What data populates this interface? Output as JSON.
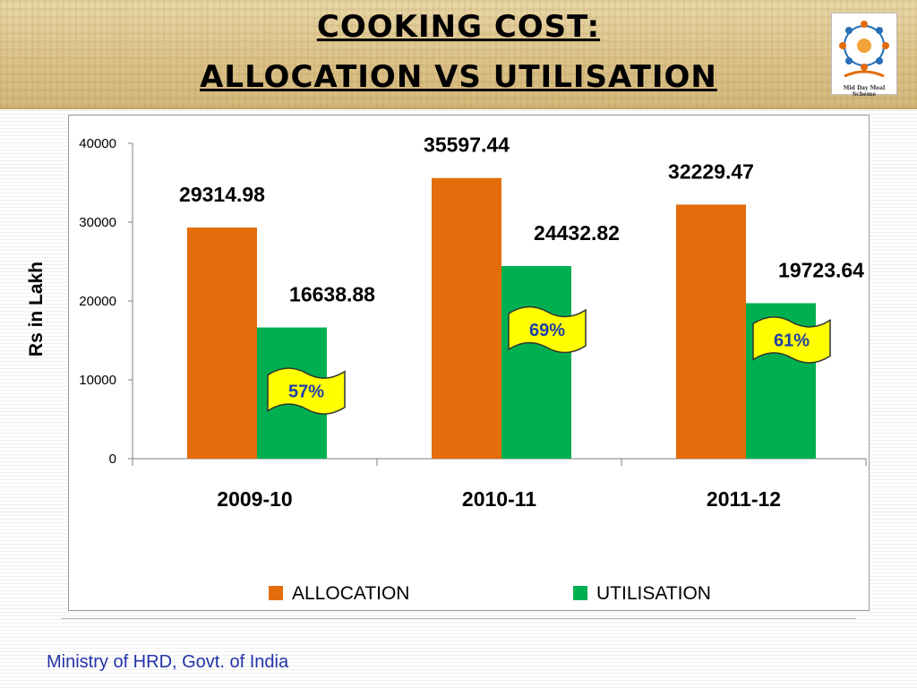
{
  "header": {
    "title_line1": "COOKING COST:",
    "title_line2": "ALLOCATION VS UTILISATION",
    "logo_text": "Mid Day Meal Scheme"
  },
  "footer": {
    "text": "Ministry of HRD, Govt. of India"
  },
  "colors": {
    "allocation": "#e46c0a",
    "utilisation": "#00b050",
    "badge_fill": "#ffff00",
    "badge_text": "#1f3fa8"
  },
  "chart_data": {
    "type": "bar",
    "categories": [
      "2009-10",
      "2010-11",
      "2011-12"
    ],
    "series": [
      {
        "name": "ALLOCATION",
        "values": [
          29314.98,
          35597.44,
          32229.47
        ],
        "labels": [
          "29314.98",
          "35597.44",
          "32229.47"
        ]
      },
      {
        "name": "UTILISATION",
        "values": [
          16638.88,
          24432.82,
          19723.64
        ],
        "labels": [
          "16638.88",
          "24432.82",
          "19723.64"
        ]
      }
    ],
    "utilisation_percent": [
      "57%",
      "69%",
      "61%"
    ],
    "ylabel": "Rs in Lakh",
    "xlabel": "",
    "ylim": [
      0,
      40000
    ],
    "yticks": [
      0,
      10000,
      20000,
      30000,
      40000
    ],
    "ytick_labels": [
      "0",
      "10000",
      "20000",
      "30000",
      "40000"
    ],
    "grid": false,
    "legend_position": "bottom"
  }
}
